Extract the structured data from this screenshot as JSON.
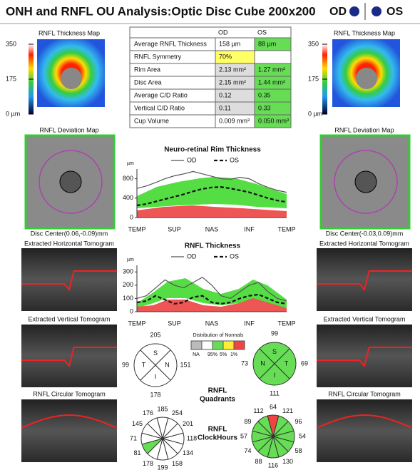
{
  "header": {
    "title": "ONH and RNFL OU Analysis:Optic Disc Cube 200x200",
    "od": "OD",
    "os": "OS"
  },
  "table": {
    "columns": [
      "OD",
      "OS"
    ],
    "rows": [
      [
        "Average RNFL Thickness",
        "158 µm",
        "88 µm"
      ],
      [
        "RNFL Symmetry",
        "70%"
      ],
      [
        "Rim Area",
        "2.13 mm²",
        "1.27 mm²"
      ],
      [
        "Disc Area",
        "2.15 mm²",
        "1.44 mm²"
      ],
      [
        "Average C/D Ratio",
        "0.12",
        "0.35"
      ],
      [
        "Vertical C/D Ratio",
        "0.11",
        "0.33"
      ],
      [
        "Cup Volume",
        "0.009 mm³",
        "0.050 mm³"
      ]
    ],
    "od_fills": [
      "#ffffff",
      "#ffff66",
      "#dddddd",
      "#dddddd",
      "#dddddd",
      "#dddddd",
      "#ffffff"
    ],
    "os_fill": "#66dd55"
  },
  "od_panel": {
    "thickness_map": "RNFL Thickness Map",
    "scale_ticks": [
      350,
      175,
      {
        "value": 0,
        "label": "0 µm"
      }
    ],
    "deviation_map": "RNFL Deviation Map",
    "disc_center": "Disc Center(0.06,-0.09)mm",
    "horizontal": "Extracted Horizontal Tomogram",
    "vertical": "Extracted Vertical Tomogram",
    "circular": "RNFL Circular Tomogram"
  },
  "os_panel": {
    "thickness_map": "RNFL Thickness Map",
    "scale_ticks": [
      350,
      175,
      {
        "value": 0,
        "label": "0 µm"
      }
    ],
    "deviation_map": "RNFL Deviation Map",
    "disc_center": "Disc Center(-0.03,0.09)mm",
    "horizontal": "Extracted Horizontal Tomogram",
    "vertical": "Extracted Vertical Tomogram",
    "circular": "RNFL Circular Tomogram"
  },
  "rim_chart": {
    "title": "Neuro-retinal Rim Thickness",
    "y_label": "µm",
    "ylim": [
      0,
      1000
    ],
    "yticks": [
      0,
      400,
      800
    ],
    "categories": [
      "TEMP",
      null,
      null,
      null,
      "SUP",
      null,
      null,
      null,
      "NAS",
      null,
      null,
      null,
      "INF",
      null,
      null,
      null,
      "TEMP"
    ],
    "series": [
      {
        "name": "OD",
        "color": "#555555",
        "dash": false,
        "values": [
          600,
          650,
          720,
          800,
          860,
          900,
          950,
          900,
          850,
          800,
          790,
          830,
          800,
          700,
          620,
          560,
          520
        ]
      },
      {
        "name": "OS",
        "color": "#111111",
        "dash": true,
        "values": [
          250,
          280,
          330,
          380,
          430,
          480,
          540,
          590,
          620,
          630,
          600,
          560,
          520,
          460,
          400,
          350,
          320
        ]
      }
    ]
  },
  "rnfl_chart": {
    "title": "RNFL Thickness",
    "y_label": "µm",
    "ylim": [
      0,
      350
    ],
    "yticks": [
      0,
      100,
      200,
      300
    ],
    "categories": [
      "TEMP",
      null,
      null,
      null,
      "SUP",
      null,
      null,
      null,
      "NAS",
      null,
      null,
      null,
      "INF",
      null,
      null,
      null,
      "TEMP"
    ],
    "series": [
      {
        "name": "OD",
        "color": "#555555",
        "dash": false,
        "values": [
          100,
          120,
          180,
          240,
          200,
          180,
          220,
          260,
          200,
          120,
          100,
          150,
          200,
          220,
          150,
          100,
          80
        ]
      },
      {
        "name": "OS",
        "color": "#111111",
        "dash": true,
        "values": [
          70,
          80,
          120,
          90,
          60,
          70,
          110,
          120,
          70,
          60,
          70,
          100,
          120,
          130,
          100,
          70,
          60
        ]
      }
    ]
  },
  "distribution": {
    "title": "Distribution of Normals",
    "colors": [
      "#bbbbbb",
      "#ffffff",
      "#66dd55",
      "#ffee33",
      "#ee4444"
    ],
    "labels": [
      "NA",
      "95%",
      "5%",
      "1%"
    ]
  },
  "quadrants": {
    "label": [
      "RNFL",
      "Quadrants"
    ],
    "od": {
      "letters": [
        "S",
        "N",
        "I",
        "T"
      ],
      "values": [
        205,
        151,
        178,
        99
      ],
      "colors": [
        "#ffffff",
        "#ffffff",
        "#ffffff",
        "#ffffff"
      ]
    },
    "os": {
      "letters": [
        "S",
        "T",
        "I",
        "N"
      ],
      "values": [
        99,
        69,
        111,
        73
      ],
      "colors": [
        "#66dd55",
        "#66dd55",
        "#66dd55",
        "#66dd55"
      ]
    }
  },
  "clock_hours": {
    "label": [
      "RNFL",
      "ClockHours"
    ],
    "od": {
      "values": [
        185,
        254,
        201,
        118,
        134,
        158,
        199,
        178,
        81,
        71,
        145,
        176
      ],
      "colors": [
        "#ffffff",
        "#ffffff",
        "#ffffff",
        "#ffffff",
        "#ffffff",
        "#ffffff",
        "#ffffff",
        "#ffffff",
        "#66dd55",
        "#ffffff",
        "#ffffff",
        "#ffffff"
      ]
    },
    "os": {
      "values": [
        64,
        121,
        96,
        54,
        58,
        130,
        116,
        88,
        74,
        57,
        89,
        112
      ],
      "colors": [
        "#ee4444",
        "#66dd55",
        "#66dd55",
        "#66dd55",
        "#66dd55",
        "#66dd55",
        "#66dd55",
        "#66dd55",
        "#66dd55",
        "#66dd55",
        "#66dd55",
        "#66dd55"
      ]
    }
  }
}
